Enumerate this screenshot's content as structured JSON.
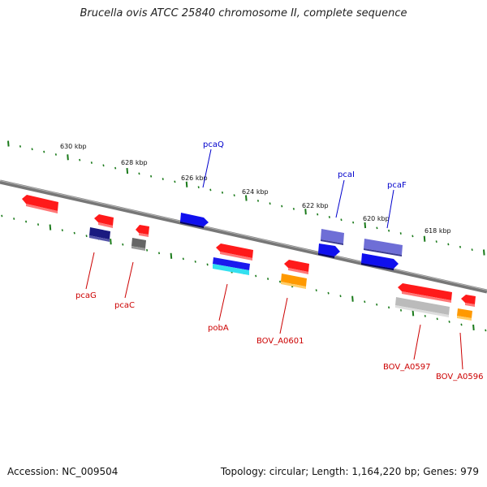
{
  "title": "Brucella ovis ATCC 25840 chromosome II, complete sequence",
  "footer": {
    "accession": "Accession: NC_009504",
    "summary": "Topology: circular; Length: 1,164,220 bp; Genes: 979"
  },
  "scale_labels": [
    "630 kbp",
    "628 kbp",
    "626 kbp",
    "624 kbp",
    "622 kbp",
    "620 kbp",
    "618 kbp"
  ],
  "gene_labels_top": [
    "pcaQ",
    "pcaI",
    "pcaF"
  ],
  "gene_labels_bottom": [
    "pcaG",
    "pcaC",
    "pobA",
    "BOV_A0601",
    "BOV_A0597",
    "BOV_A0596"
  ],
  "colors": {
    "red": "#ff1a1a",
    "navy": "#1a1a80",
    "dark_gray": "#666666",
    "blue": "#1010ee",
    "blue_cyan": "#1a1aee",
    "orange": "#ff9900",
    "light_gray": "#bbbbbb",
    "slate": "#7777cc",
    "label_blue": "#0000cc",
    "label_red": "#cc0000",
    "tick_green": "#1a7a1a"
  }
}
